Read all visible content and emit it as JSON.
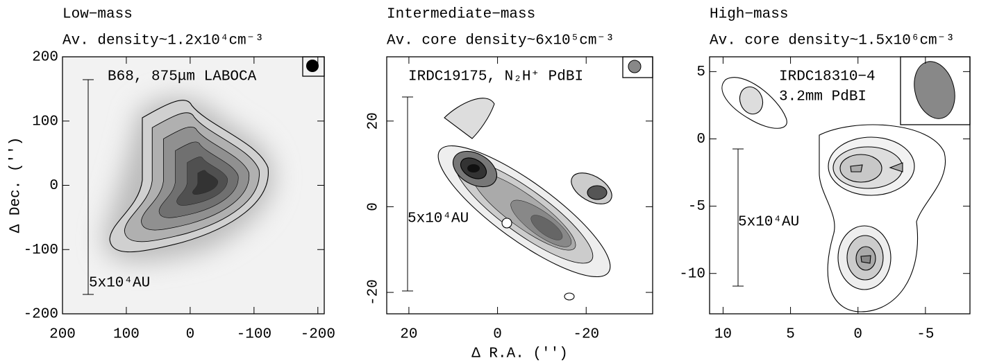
{
  "chart_data": [
    {
      "type": "contour",
      "title": "Low−mass",
      "subtitle": "Av. density~1.2x10⁴cm⁻³",
      "label": [
        "B68, 875μm LABOCA"
      ],
      "scale_label": "5x10⁴AU",
      "ylabel": "Δ Dec. ('')",
      "xlim": [
        200,
        -210
      ],
      "ylim": [
        -200,
        200
      ],
      "xticks": [
        200,
        100,
        0,
        -100,
        -200
      ],
      "yticks": [
        -200,
        -100,
        0,
        100,
        200
      ]
    },
    {
      "type": "contour",
      "title": "Intermediate−mass",
      "subtitle": "Av. core density~6x10⁵cm⁻³",
      "label": [
        "IRDC19175, N₂H⁺ PdBI"
      ],
      "scale_label": "5x10⁴AU",
      "xlabel": "Δ R.A. ('')",
      "xlim": [
        25,
        -35
      ],
      "ylim": [
        -25,
        35
      ],
      "xticks": [
        20,
        0,
        -20
      ],
      "yticks": [
        -20,
        0,
        20
      ]
    },
    {
      "type": "contour",
      "title": "High−mass",
      "subtitle": "Av. core density~1.5x10⁶cm⁻³",
      "label": [
        "IRDC18310−4",
        "3.2mm PdBI"
      ],
      "scale_label": "5x10⁴AU",
      "xlim": [
        11,
        -8.3
      ],
      "ylim": [
        -13,
        6.1
      ],
      "xticks": [
        10,
        5,
        0,
        -5
      ],
      "yticks": [
        -10,
        -5,
        0,
        5
      ]
    }
  ]
}
